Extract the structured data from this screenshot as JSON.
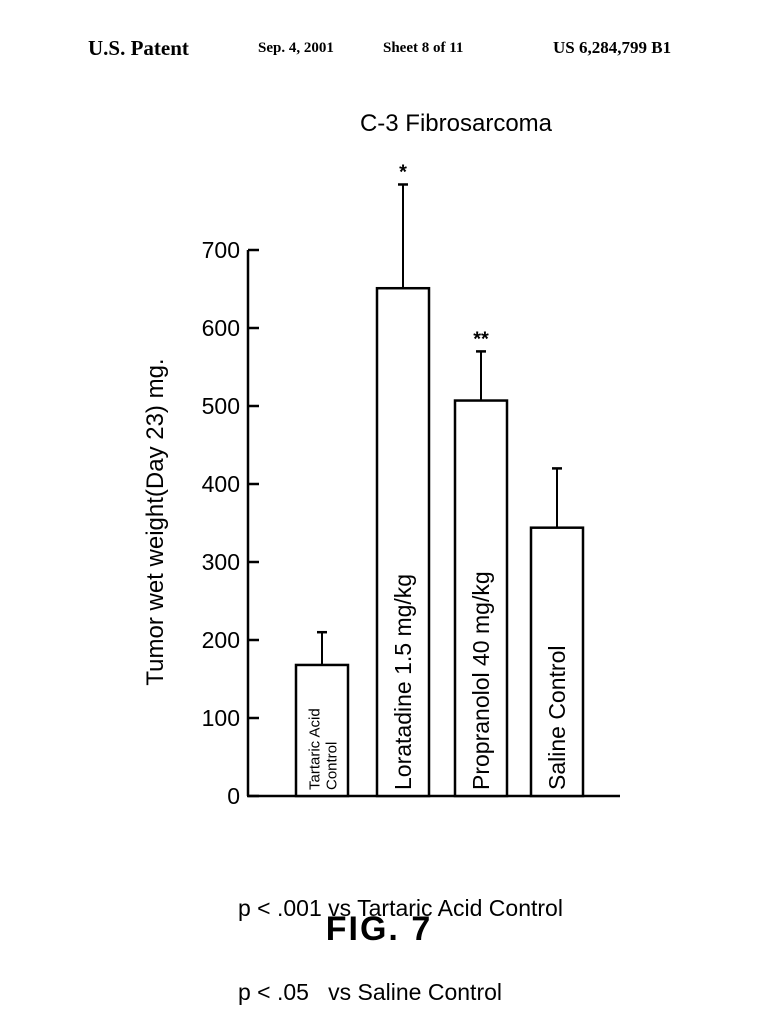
{
  "header": {
    "left": "U.S. Patent",
    "date": "Sep. 4, 2001",
    "sheet": "Sheet 8 of 11",
    "patent_number": "US 6,284,799 B1"
  },
  "chart_data": {
    "type": "bar",
    "title": "C-3 Fibrosarcoma",
    "xlabel": "",
    "ylabel": "Tumor wet weight(Day 23) mg.",
    "ylim": [
      0,
      700
    ],
    "yticks": [
      0,
      100,
      200,
      300,
      400,
      500,
      600,
      700
    ],
    "categories": [
      "Tartaric Acid Control",
      "Loratadine 1.5 mg/kg",
      "Propranolol 40 mg/kg",
      "Saline Control"
    ],
    "category_label_lines": [
      [
        "Tartaric Acid",
        "Control"
      ],
      [
        "Loratadine 1.5 mg/kg"
      ],
      [
        "Propranolol 40 mg/kg"
      ],
      [
        "Saline Control"
      ]
    ],
    "values": [
      168,
      651,
      507,
      344
    ],
    "error_upper": [
      210,
      784,
      570,
      420
    ],
    "significance": [
      "",
      "*",
      "**",
      ""
    ],
    "grid": false,
    "legend": "none"
  },
  "footnotes": [
    "p < .001 vs Tartaric Acid Control",
    "p < .05   vs Saline Control"
  ],
  "figure_label": "FIG. 7"
}
